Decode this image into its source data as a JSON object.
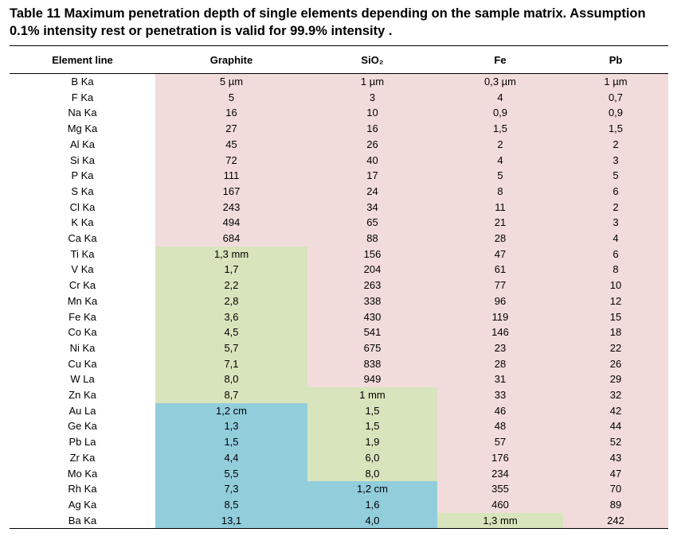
{
  "caption_line1": "Table 11 Maximum penetration depth of single elements depending on the sample matrix. Assumption",
  "caption_line2": "0.1% intensity rest or penetration is valid for 99.9% intensity .",
  "headers": [
    "Element line",
    "Graphite",
    "SiO₂",
    "Fe",
    "Pb"
  ],
  "colors": {
    "pink": "#f2dcdb",
    "green": "#d8e4bc",
    "blue": "#92cddc"
  },
  "rows": [
    {
      "el": "B Ka",
      "cells": [
        "5 µm",
        "1 µm",
        "0,3 µm",
        "1 µm"
      ],
      "bg": [
        "pink",
        "pink",
        "pink",
        "pink"
      ]
    },
    {
      "el": "F Ka",
      "cells": [
        "5",
        "3",
        "4",
        "0,7"
      ],
      "bg": [
        "pink",
        "pink",
        "pink",
        "pink"
      ]
    },
    {
      "el": "Na Ka",
      "cells": [
        "16",
        "10",
        "0,9",
        "0,9"
      ],
      "bg": [
        "pink",
        "pink",
        "pink",
        "pink"
      ]
    },
    {
      "el": "Mg Ka",
      "cells": [
        "27",
        "16",
        "1,5",
        "1,5"
      ],
      "bg": [
        "pink",
        "pink",
        "pink",
        "pink"
      ]
    },
    {
      "el": "Al Ka",
      "cells": [
        "45",
        "26",
        "2",
        "2"
      ],
      "bg": [
        "pink",
        "pink",
        "pink",
        "pink"
      ]
    },
    {
      "el": "Si Ka",
      "cells": [
        "72",
        "40",
        "4",
        "3"
      ],
      "bg": [
        "pink",
        "pink",
        "pink",
        "pink"
      ]
    },
    {
      "el": "P Ka",
      "cells": [
        "111",
        "17",
        "5",
        "5"
      ],
      "bg": [
        "pink",
        "pink",
        "pink",
        "pink"
      ]
    },
    {
      "el": "S Ka",
      "cells": [
        "167",
        "24",
        "8",
        "6"
      ],
      "bg": [
        "pink",
        "pink",
        "pink",
        "pink"
      ]
    },
    {
      "el": "Cl Ka",
      "cells": [
        "243",
        "34",
        "11",
        "2"
      ],
      "bg": [
        "pink",
        "pink",
        "pink",
        "pink"
      ]
    },
    {
      "el": "K Ka",
      "cells": [
        "494",
        "65",
        "21",
        "3"
      ],
      "bg": [
        "pink",
        "pink",
        "pink",
        "pink"
      ]
    },
    {
      "el": "Ca Ka",
      "cells": [
        "684",
        "88",
        "28",
        "4"
      ],
      "bg": [
        "pink",
        "pink",
        "pink",
        "pink"
      ]
    },
    {
      "el": "Ti Ka",
      "cells": [
        "1,3 mm",
        "156",
        "47",
        "6"
      ],
      "bg": [
        "green",
        "pink",
        "pink",
        "pink"
      ]
    },
    {
      "el": "V Ka",
      "cells": [
        "1,7",
        "204",
        "61",
        "8"
      ],
      "bg": [
        "green",
        "pink",
        "pink",
        "pink"
      ]
    },
    {
      "el": "Cr Ka",
      "cells": [
        "2,2",
        "263",
        "77",
        "10"
      ],
      "bg": [
        "green",
        "pink",
        "pink",
        "pink"
      ]
    },
    {
      "el": "Mn Ka",
      "cells": [
        "2,8",
        "338",
        "96",
        "12"
      ],
      "bg": [
        "green",
        "pink",
        "pink",
        "pink"
      ]
    },
    {
      "el": "Fe Ka",
      "cells": [
        "3,6",
        "430",
        "119",
        "15"
      ],
      "bg": [
        "green",
        "pink",
        "pink",
        "pink"
      ]
    },
    {
      "el": "Co Ka",
      "cells": [
        "4,5",
        "541",
        "146",
        "18"
      ],
      "bg": [
        "green",
        "pink",
        "pink",
        "pink"
      ]
    },
    {
      "el": "Ni Ka",
      "cells": [
        "5,7",
        "675",
        "23",
        "22"
      ],
      "bg": [
        "green",
        "pink",
        "pink",
        "pink"
      ]
    },
    {
      "el": "Cu Ka",
      "cells": [
        "7,1",
        "838",
        "28",
        "26"
      ],
      "bg": [
        "green",
        "pink",
        "pink",
        "pink"
      ]
    },
    {
      "el": "W La",
      "cells": [
        "8,0",
        "949",
        "31",
        "29"
      ],
      "bg": [
        "green",
        "pink",
        "pink",
        "pink"
      ]
    },
    {
      "el": "Zn Ka",
      "cells": [
        "8,7",
        "1 mm",
        "33",
        "32"
      ],
      "bg": [
        "green",
        "green",
        "pink",
        "pink"
      ]
    },
    {
      "el": "Au La",
      "cells": [
        "1,2 cm",
        "1,5",
        "46",
        "42"
      ],
      "bg": [
        "blue",
        "green",
        "pink",
        "pink"
      ]
    },
    {
      "el": "Ge Ka",
      "cells": [
        "1,3",
        "1,5",
        "48",
        "44"
      ],
      "bg": [
        "blue",
        "green",
        "pink",
        "pink"
      ]
    },
    {
      "el": "Pb La",
      "cells": [
        "1,5",
        "1,9",
        "57",
        "52"
      ],
      "bg": [
        "blue",
        "green",
        "pink",
        "pink"
      ]
    },
    {
      "el": "Zr Ka",
      "cells": [
        "4,4",
        "6,0",
        "176",
        "43"
      ],
      "bg": [
        "blue",
        "green",
        "pink",
        "pink"
      ]
    },
    {
      "el": "Mo Ka",
      "cells": [
        "5,5",
        "8,0",
        "234",
        "47"
      ],
      "bg": [
        "blue",
        "green",
        "pink",
        "pink"
      ]
    },
    {
      "el": "Rh Ka",
      "cells": [
        "7,3",
        "1,2 cm",
        "355",
        "70"
      ],
      "bg": [
        "blue",
        "blue",
        "pink",
        "pink"
      ]
    },
    {
      "el": "Ag Ka",
      "cells": [
        "8,5",
        "1,6",
        "460",
        "89"
      ],
      "bg": [
        "blue",
        "blue",
        "pink",
        "pink"
      ]
    },
    {
      "el": "Ba Ka",
      "cells": [
        "13,1",
        "4,0",
        "1,3 mm",
        "242"
      ],
      "bg": [
        "blue",
        "blue",
        "green",
        "pink"
      ]
    }
  ]
}
